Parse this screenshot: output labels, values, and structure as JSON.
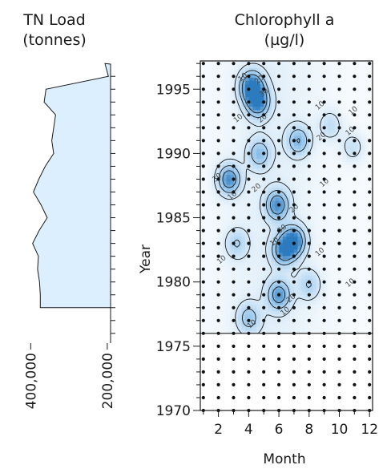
{
  "chart_data": [
    {
      "type": "area",
      "title_lines": [
        "TN Load",
        "(tonnes)"
      ],
      "orientation": "horizontal",
      "x_ticks": [
        {
          "value": 400000,
          "label": "400,000"
        },
        {
          "value": 200000,
          "label": "200,000"
        }
      ],
      "xlim": [
        430000,
        160000
      ],
      "ylim": [
        1970,
        1997.2
      ],
      "series": [
        {
          "fill": "#dcefff",
          "points": [
            {
              "year": 1978,
              "load": 375000
            },
            {
              "year": 1979,
              "load": 375000
            },
            {
              "year": 1980,
              "load": 377000
            },
            {
              "year": 1981,
              "load": 382000
            },
            {
              "year": 1982,
              "load": 380000
            },
            {
              "year": 1983,
              "load": 395000
            },
            {
              "year": 1984,
              "load": 378000
            },
            {
              "year": 1985,
              "load": 357000
            },
            {
              "year": 1986,
              "load": 373000
            },
            {
              "year": 1987,
              "load": 393000
            },
            {
              "year": 1988,
              "load": 379000
            },
            {
              "year": 1989,
              "load": 362000
            },
            {
              "year": 1990,
              "load": 340000
            },
            {
              "year": 1991,
              "load": 345000
            },
            {
              "year": 1992,
              "load": 340000
            },
            {
              "year": 1993,
              "load": 335000
            },
            {
              "year": 1994,
              "load": 365000
            },
            {
              "year": 1995,
              "load": 360000
            },
            {
              "year": 1996,
              "load": 197000
            },
            {
              "year": 1997,
              "load": 206000
            }
          ]
        }
      ]
    },
    {
      "type": "heatmap",
      "title_lines": [
        "Chlorophyll a",
        "(µg/l)"
      ],
      "xlabel": "Month",
      "ylabel": "Year",
      "x_ticks": [
        2,
        4,
        6,
        8,
        10,
        12
      ],
      "y_ticks": [
        1970,
        1975,
        1980,
        1985,
        1990,
        1995
      ],
      "xlim": [
        0.8,
        12.2
      ],
      "ylim": [
        1970,
        1997.2
      ],
      "data_start_year": 1976,
      "sample_years": [
        1970,
        1971,
        1972,
        1973,
        1974,
        1975,
        1976,
        1977,
        1978,
        1979,
        1980,
        1981,
        1982,
        1983,
        1984,
        1985,
        1986,
        1987,
        1988,
        1989,
        1990,
        1991,
        1992,
        1993,
        1994,
        1995,
        1996,
        1997
      ],
      "sample_months": [
        1,
        2,
        3,
        4,
        5,
        6,
        7,
        8,
        9,
        10,
        11,
        12
      ],
      "contour_levels": [
        10,
        20,
        30
      ],
      "colors": {
        "low": "#ffffff",
        "mid": "#9fcbee",
        "high": "#2d7bbf"
      },
      "hotspots": [
        {
          "month": 4.2,
          "year": 1995.2,
          "value": 45
        },
        {
          "month": 4.6,
          "year": 1994.0,
          "value": 38
        },
        {
          "month": 5.9,
          "year": 1986.0,
          "value": 34
        },
        {
          "month": 7.0,
          "year": 1983.2,
          "value": 40
        },
        {
          "month": 6.3,
          "year": 1982.5,
          "value": 33
        },
        {
          "month": 6.0,
          "year": 1979.0,
          "value": 31
        },
        {
          "month": 2.7,
          "year": 1988.0,
          "value": 36
        },
        {
          "month": 7.3,
          "year": 1991.0,
          "value": 25
        },
        {
          "month": 4.7,
          "year": 1990.0,
          "value": 22
        },
        {
          "month": 4.0,
          "year": 1977.2,
          "value": 20
        },
        {
          "month": 3.2,
          "year": 1983.0,
          "value": 16
        },
        {
          "month": 8.0,
          "year": 1979.8,
          "value": 16
        },
        {
          "month": 9.4,
          "year": 1992.2,
          "value": 13
        },
        {
          "month": 10.9,
          "year": 1990.5,
          "value": 12
        }
      ],
      "contour_label_values": [
        "10",
        "20",
        "30",
        "10",
        "20",
        "10",
        "20",
        "10",
        "30",
        "10",
        "20",
        "30",
        "10",
        "10",
        "10",
        "20",
        "10",
        "10",
        "20",
        "10",
        "10",
        "10"
      ]
    }
  ]
}
